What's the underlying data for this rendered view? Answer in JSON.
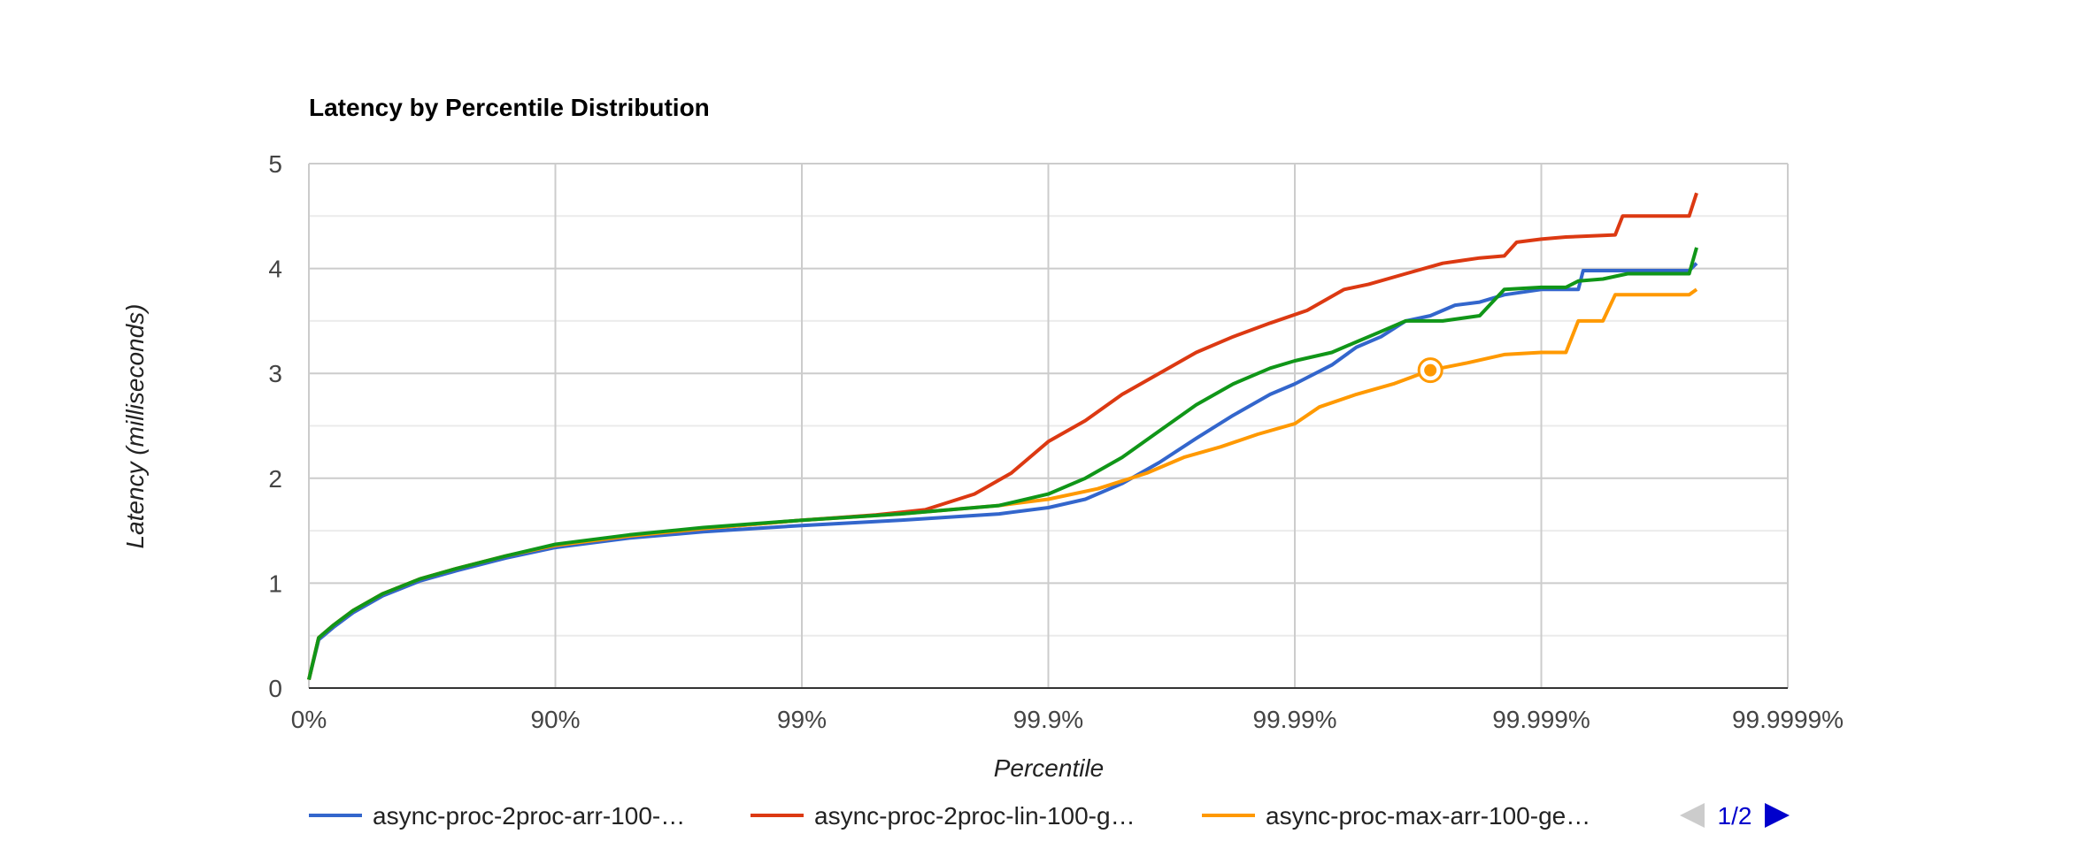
{
  "chart_data": {
    "type": "line",
    "title": "Latency by Percentile Distribution",
    "xlabel": "Percentile",
    "ylabel": "Latency (milliseconds)",
    "x_scale": "percentile-nines (log of 1/(1-p))",
    "x_ticks": [
      "0%",
      "90%",
      "99%",
      "99.9%",
      "99.99%",
      "99.999%",
      "99.9999%"
    ],
    "x_tick_nines": [
      0,
      1,
      2,
      3,
      4,
      5,
      6
    ],
    "ylim": [
      0,
      5
    ],
    "y_ticks": [
      0,
      1,
      2,
      3,
      4,
      5
    ],
    "y_minor_gridlines": [
      0.5,
      1.5,
      2.5,
      3.5,
      4.5
    ],
    "grid": true,
    "legend_position": "bottom",
    "legend_pager": "1/2",
    "highlighted_point": {
      "series": 2,
      "nines": 4.55,
      "y": 3.03
    },
    "series": [
      {
        "name": "async-proc-2proc-arr-100-…",
        "color": "#3366cc",
        "points": [
          [
            0,
            0.08
          ],
          [
            0.04,
            0.46
          ],
          [
            0.1,
            0.58
          ],
          [
            0.18,
            0.72
          ],
          [
            0.3,
            0.88
          ],
          [
            0.45,
            1.02
          ],
          [
            0.6,
            1.12
          ],
          [
            0.8,
            1.24
          ],
          [
            1.0,
            1.34
          ],
          [
            1.3,
            1.43
          ],
          [
            1.6,
            1.49
          ],
          [
            2.0,
            1.55
          ],
          [
            2.4,
            1.6
          ],
          [
            2.8,
            1.66
          ],
          [
            3.0,
            1.72
          ],
          [
            3.15,
            1.8
          ],
          [
            3.3,
            1.95
          ],
          [
            3.45,
            2.15
          ],
          [
            3.6,
            2.38
          ],
          [
            3.75,
            2.6
          ],
          [
            3.9,
            2.8
          ],
          [
            4.0,
            2.9
          ],
          [
            4.15,
            3.08
          ],
          [
            4.25,
            3.25
          ],
          [
            4.35,
            3.35
          ],
          [
            4.45,
            3.5
          ],
          [
            4.55,
            3.55
          ],
          [
            4.65,
            3.65
          ],
          [
            4.75,
            3.68
          ],
          [
            4.85,
            3.75
          ],
          [
            5.0,
            3.8
          ],
          [
            5.15,
            3.8
          ],
          [
            5.17,
            3.98
          ],
          [
            5.6,
            3.98
          ],
          [
            5.63,
            4.05
          ]
        ]
      },
      {
        "name": "async-proc-2proc-lin-100-g…",
        "color": "#dc3912",
        "points": [
          [
            0,
            0.08
          ],
          [
            0.04,
            0.48
          ],
          [
            0.1,
            0.6
          ],
          [
            0.18,
            0.74
          ],
          [
            0.3,
            0.9
          ],
          [
            0.45,
            1.04
          ],
          [
            0.6,
            1.14
          ],
          [
            0.8,
            1.26
          ],
          [
            1.0,
            1.36
          ],
          [
            1.3,
            1.45
          ],
          [
            1.6,
            1.52
          ],
          [
            2.0,
            1.6
          ],
          [
            2.3,
            1.65
          ],
          [
            2.5,
            1.7
          ],
          [
            2.7,
            1.85
          ],
          [
            2.85,
            2.05
          ],
          [
            3.0,
            2.35
          ],
          [
            3.15,
            2.55
          ],
          [
            3.3,
            2.8
          ],
          [
            3.45,
            3.0
          ],
          [
            3.6,
            3.2
          ],
          [
            3.75,
            3.35
          ],
          [
            3.9,
            3.48
          ],
          [
            4.05,
            3.6
          ],
          [
            4.2,
            3.8
          ],
          [
            4.3,
            3.85
          ],
          [
            4.45,
            3.95
          ],
          [
            4.6,
            4.05
          ],
          [
            4.75,
            4.1
          ],
          [
            4.85,
            4.12
          ],
          [
            4.9,
            4.25
          ],
          [
            5.0,
            4.28
          ],
          [
            5.1,
            4.3
          ],
          [
            5.3,
            4.32
          ],
          [
            5.33,
            4.5
          ],
          [
            5.6,
            4.5
          ],
          [
            5.63,
            4.72
          ]
        ]
      },
      {
        "name": "async-proc-max-arr-100-ge…",
        "color": "#ff9900",
        "points": [
          [
            0,
            0.08
          ],
          [
            0.04,
            0.48
          ],
          [
            0.1,
            0.6
          ],
          [
            0.18,
            0.74
          ],
          [
            0.3,
            0.9
          ],
          [
            0.45,
            1.04
          ],
          [
            0.6,
            1.14
          ],
          [
            0.8,
            1.26
          ],
          [
            1.0,
            1.36
          ],
          [
            1.3,
            1.45
          ],
          [
            1.6,
            1.52
          ],
          [
            2.0,
            1.6
          ],
          [
            2.4,
            1.66
          ],
          [
            2.8,
            1.74
          ],
          [
            3.0,
            1.8
          ],
          [
            3.2,
            1.9
          ],
          [
            3.4,
            2.05
          ],
          [
            3.55,
            2.2
          ],
          [
            3.7,
            2.3
          ],
          [
            3.85,
            2.42
          ],
          [
            4.0,
            2.52
          ],
          [
            4.1,
            2.68
          ],
          [
            4.25,
            2.8
          ],
          [
            4.4,
            2.9
          ],
          [
            4.55,
            3.03
          ],
          [
            4.7,
            3.1
          ],
          [
            4.85,
            3.18
          ],
          [
            5.0,
            3.2
          ],
          [
            5.1,
            3.2
          ],
          [
            5.15,
            3.5
          ],
          [
            5.25,
            3.5
          ],
          [
            5.3,
            3.75
          ],
          [
            5.6,
            3.75
          ],
          [
            5.63,
            3.8
          ]
        ]
      },
      {
        "color": "#109618",
        "points": [
          [
            0,
            0.08
          ],
          [
            0.04,
            0.48
          ],
          [
            0.1,
            0.6
          ],
          [
            0.18,
            0.74
          ],
          [
            0.3,
            0.9
          ],
          [
            0.45,
            1.04
          ],
          [
            0.6,
            1.14
          ],
          [
            0.8,
            1.26
          ],
          [
            1.0,
            1.37
          ],
          [
            1.3,
            1.46
          ],
          [
            1.6,
            1.53
          ],
          [
            2.0,
            1.6
          ],
          [
            2.4,
            1.66
          ],
          [
            2.8,
            1.74
          ],
          [
            3.0,
            1.85
          ],
          [
            3.15,
            2.0
          ],
          [
            3.3,
            2.2
          ],
          [
            3.45,
            2.45
          ],
          [
            3.6,
            2.7
          ],
          [
            3.75,
            2.9
          ],
          [
            3.9,
            3.05
          ],
          [
            4.0,
            3.12
          ],
          [
            4.15,
            3.2
          ],
          [
            4.25,
            3.3
          ],
          [
            4.35,
            3.4
          ],
          [
            4.45,
            3.5
          ],
          [
            4.6,
            3.5
          ],
          [
            4.75,
            3.55
          ],
          [
            4.85,
            3.8
          ],
          [
            5.0,
            3.82
          ],
          [
            5.1,
            3.82
          ],
          [
            5.15,
            3.88
          ],
          [
            5.25,
            3.9
          ],
          [
            5.35,
            3.95
          ],
          [
            5.6,
            3.95
          ],
          [
            5.63,
            4.2
          ]
        ]
      }
    ]
  }
}
